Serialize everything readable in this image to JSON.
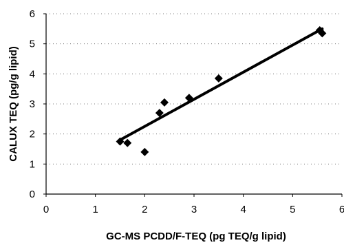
{
  "chart_data": {
    "type": "scatter",
    "title": "",
    "xlabel": "GC-MS PCDD/F-TEQ (pg TEQ/g lipid)",
    "ylabel": "CALUX TEQ (pg/g lipid)",
    "xlim": [
      0,
      6
    ],
    "ylim": [
      0,
      6
    ],
    "xticks": [
      0,
      1,
      2,
      3,
      4,
      5,
      6
    ],
    "yticks": [
      0,
      1,
      2,
      3,
      4,
      5,
      6
    ],
    "grid": "dotted horizontal",
    "legend": "none",
    "marker": "diamond",
    "series": [
      {
        "points": [
          {
            "x": 1.5,
            "y": 1.75
          },
          {
            "x": 1.65,
            "y": 1.7
          },
          {
            "x": 2.0,
            "y": 1.4
          },
          {
            "x": 2.3,
            "y": 2.7
          },
          {
            "x": 2.4,
            "y": 3.05
          },
          {
            "x": 2.9,
            "y": 3.2
          },
          {
            "x": 3.5,
            "y": 3.85
          },
          {
            "x": 5.55,
            "y": 5.45
          },
          {
            "x": 5.6,
            "y": 5.35
          }
        ]
      }
    ],
    "trendline": {
      "x": [
        1.5,
        5.6
      ],
      "y": [
        1.8,
        5.5
      ]
    }
  }
}
